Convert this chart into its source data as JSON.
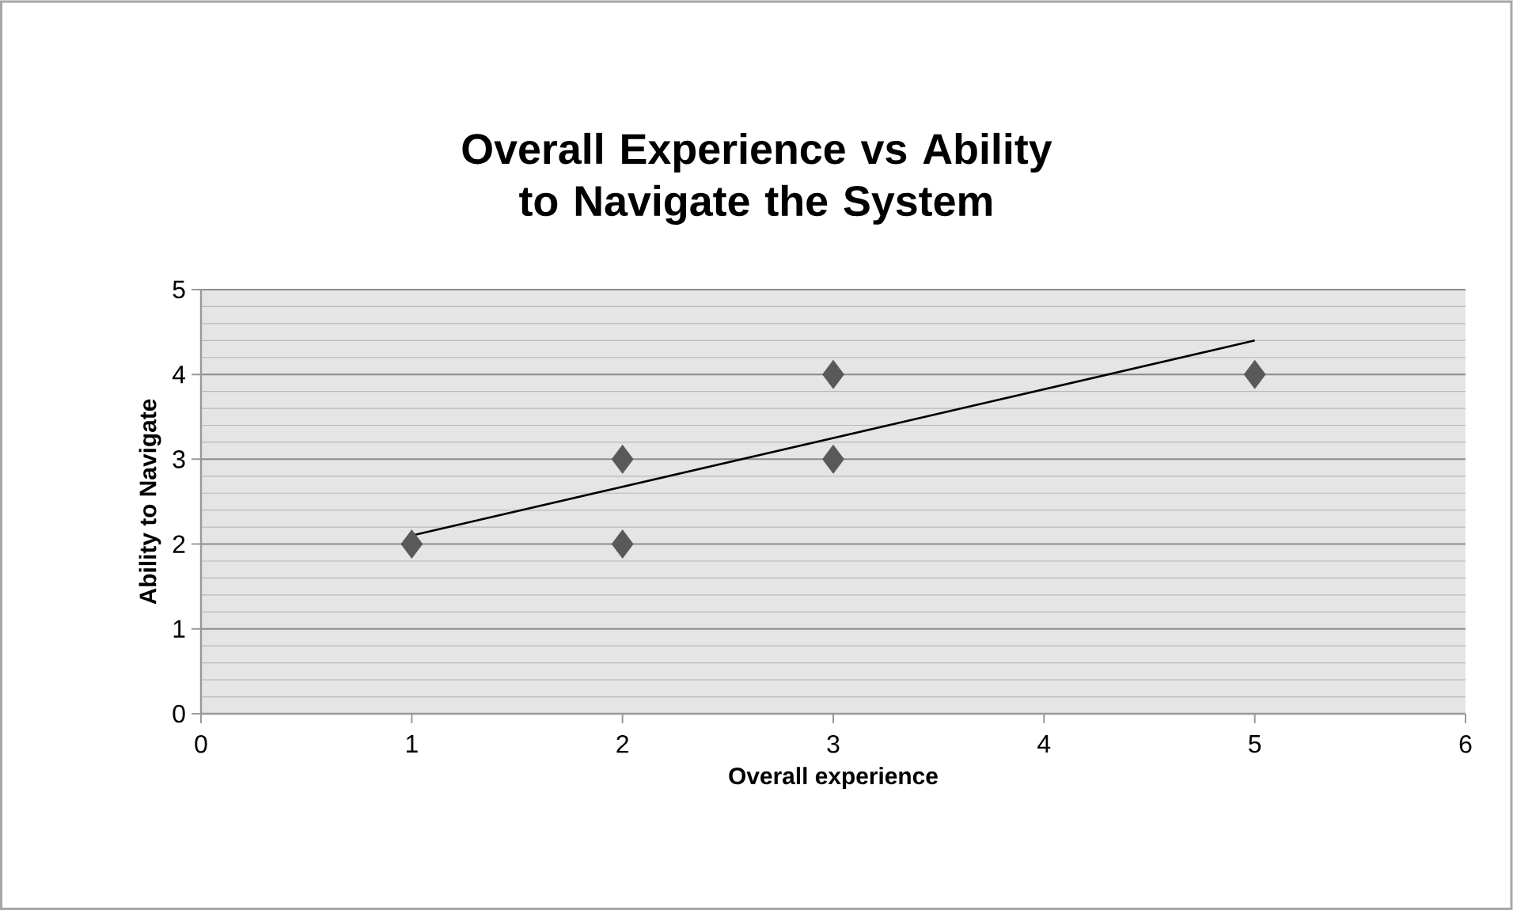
{
  "chart_data": {
    "type": "scatter",
    "title": "Overall Experience vs Ability to Navigate the System",
    "xlabel": "Overall experience",
    "ylabel": "Ability to Navigate",
    "series": [
      {
        "color": "#595959",
        "marker": "diamond",
        "x": [
          1,
          2,
          2,
          3,
          3,
          5
        ],
        "values": [
          2,
          3,
          2,
          4,
          3,
          4
        ]
      },
      {
        "type": "line",
        "color": "#000000",
        "marker": "none",
        "x": [
          1,
          5
        ],
        "values": [
          2.1,
          4.4
        ]
      }
    ],
    "xlim": [
      0,
      6
    ],
    "xticks": [
      0,
      1,
      2,
      3,
      4,
      5,
      6
    ],
    "ylim": [
      0,
      5
    ],
    "yticks": [
      0,
      1,
      2,
      3,
      4,
      5
    ],
    "grid": "y"
  }
}
